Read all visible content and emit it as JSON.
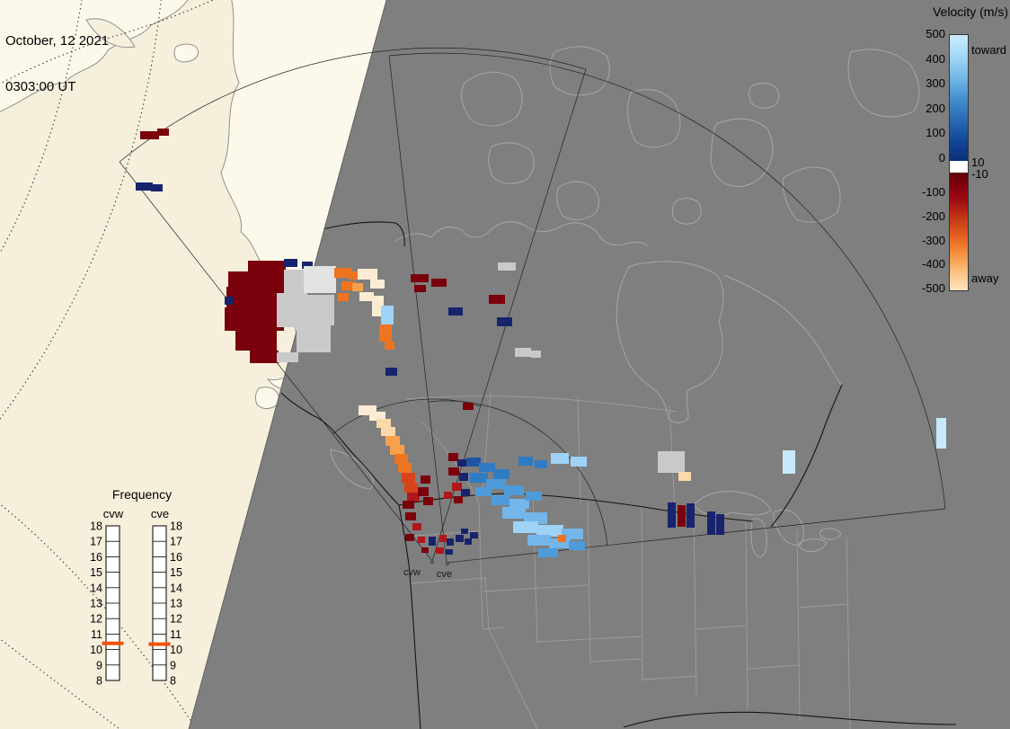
{
  "timestamp": {
    "date": "October, 12 2021",
    "time": "0303:00 UT"
  },
  "velocity_legend": {
    "title": "Velocity (m/s)",
    "toward_label": "toward",
    "away_label": "away",
    "pos_ticks": [
      "500",
      "400",
      "300",
      "200",
      "100",
      "0"
    ],
    "neg_ticks": [
      "-100",
      "-200",
      "-300",
      "-400",
      "-500"
    ],
    "inner_pos_tick": "10",
    "inner_neg_tick": "-10",
    "blue_stops": [
      "#c9ecfc",
      "#a3d8f5",
      "#74b9e8",
      "#4690cf",
      "#2a6cb5",
      "#12489a",
      "#0b2f78"
    ],
    "red_stops": [
      "#610008",
      "#84000e",
      "#a30f14",
      "#c23317",
      "#dd551e",
      "#ef7c2c",
      "#f9a455",
      "#fcc98d",
      "#fde3bd"
    ],
    "zero_gap_color": "#ffffff"
  },
  "frequency_legend": {
    "title": "Frequency",
    "ticks": [
      "18",
      "17",
      "16",
      "15",
      "14",
      "13",
      "12",
      "11",
      "10",
      "9",
      "8"
    ],
    "columns": [
      {
        "id": "cvw",
        "label": "cvw",
        "tick_side": "left",
        "marker_freq": 10.4
      },
      {
        "id": "cve",
        "label": "cve",
        "tick_side": "right",
        "marker_freq": 10.35
      }
    ],
    "marker_color": "#f25009"
  },
  "map": {
    "radar_sites": [
      {
        "id": "cvw",
        "label": "cvw"
      },
      {
        "id": "cve",
        "label": "cve"
      }
    ],
    "colors": {
      "night_bg": "#7f7f7f",
      "day_ocean": "#f5efdc",
      "day_land": "#fdf9ea",
      "coast_day": "#8f8f8f",
      "coast_night": "#a6a6a6",
      "state_line": "#9d9d9d",
      "border_dark": "#141414",
      "fov_line": "#222222",
      "terminator": "#555555"
    },
    "palette": {
      "dr": "#7a000b",
      "r": "#b0161a",
      "or": "#d8431c",
      "o": "#ee7420",
      "lo": "#f9a04d",
      "pe": "#fbd9a9",
      "pp": "#fcecd4",
      "gy": "#c9c9c9",
      "wg": "#e3e3e3",
      "nv": "#17246d",
      "b1": "#1c56a4",
      "b2": "#2f7bc3",
      "b3": "#4f9bd9",
      "b4": "#74b5ea",
      "b5": "#9ed2f6",
      "b6": "#c6e9fc"
    },
    "pixels": [
      [
        156,
        146,
        21,
        9,
        "dr"
      ],
      [
        175,
        143,
        13,
        8,
        "dr"
      ],
      [
        151,
        203,
        19,
        9,
        "nv"
      ],
      [
        168,
        205,
        13,
        8,
        "nv"
      ],
      [
        276,
        290,
        42,
        12,
        "dr"
      ],
      [
        316,
        288,
        15,
        9,
        "nv"
      ],
      [
        336,
        291,
        12,
        8,
        "nv"
      ],
      [
        254,
        302,
        62,
        17,
        "dr"
      ],
      [
        252,
        319,
        64,
        23,
        "dr"
      ],
      [
        250,
        342,
        66,
        26,
        "dr"
      ],
      [
        262,
        368,
        46,
        22,
        "dr"
      ],
      [
        278,
        390,
        32,
        14,
        "dr"
      ],
      [
        250,
        330,
        10,
        9,
        "nv"
      ],
      [
        316,
        300,
        22,
        26,
        "gy"
      ],
      [
        338,
        296,
        36,
        30,
        "wg"
      ],
      [
        308,
        326,
        34,
        38,
        "gy"
      ],
      [
        342,
        328,
        30,
        34,
        "gy"
      ],
      [
        330,
        362,
        38,
        30,
        "gy"
      ],
      [
        308,
        392,
        24,
        11,
        "gy"
      ],
      [
        372,
        298,
        20,
        11,
        "o"
      ],
      [
        388,
        302,
        13,
        9,
        "o"
      ],
      [
        380,
        313,
        16,
        10,
        "o"
      ],
      [
        392,
        315,
        12,
        9,
        "lo"
      ],
      [
        376,
        326,
        12,
        9,
        "o"
      ],
      [
        398,
        299,
        22,
        12,
        "pp"
      ],
      [
        412,
        311,
        16,
        10,
        "pp"
      ],
      [
        400,
        325,
        16,
        10,
        "pp"
      ],
      [
        414,
        329,
        13,
        23,
        "pp"
      ],
      [
        424,
        340,
        14,
        21,
        "b5"
      ],
      [
        422,
        361,
        14,
        19,
        "o"
      ],
      [
        428,
        380,
        11,
        9,
        "o"
      ],
      [
        457,
        305,
        20,
        9,
        "dr"
      ],
      [
        480,
        310,
        17,
        9,
        "dr"
      ],
      [
        461,
        317,
        13,
        8,
        "dr"
      ],
      [
        544,
        328,
        18,
        10,
        "dr"
      ],
      [
        554,
        292,
        20,
        9,
        "gy"
      ],
      [
        499,
        342,
        16,
        9,
        "nv"
      ],
      [
        553,
        353,
        17,
        10,
        "nv"
      ],
      [
        573,
        387,
        18,
        10,
        "gy"
      ],
      [
        591,
        390,
        11,
        8,
        "gy"
      ],
      [
        429,
        409,
        13,
        9,
        "nv"
      ],
      [
        399,
        451,
        20,
        11,
        "pp"
      ],
      [
        411,
        458,
        18,
        10,
        "pp"
      ],
      [
        419,
        466,
        16,
        10,
        "pe"
      ],
      [
        424,
        475,
        16,
        10,
        "pe"
      ],
      [
        429,
        485,
        16,
        11,
        "lo"
      ],
      [
        434,
        495,
        16,
        11,
        "lo"
      ],
      [
        439,
        505,
        15,
        11,
        "o"
      ],
      [
        443,
        515,
        15,
        11,
        "o"
      ],
      [
        447,
        526,
        15,
        11,
        "or"
      ],
      [
        450,
        537,
        15,
        11,
        "or"
      ],
      [
        453,
        548,
        14,
        10,
        "r"
      ],
      [
        448,
        557,
        13,
        9,
        "dr"
      ],
      [
        465,
        542,
        12,
        10,
        "dr"
      ],
      [
        468,
        529,
        11,
        9,
        "dr"
      ],
      [
        471,
        553,
        11,
        9,
        "dr"
      ],
      [
        515,
        448,
        12,
        8,
        "dr"
      ],
      [
        499,
        504,
        11,
        9,
        "dr"
      ],
      [
        509,
        511,
        10,
        8,
        "nv"
      ],
      [
        499,
        520,
        12,
        9,
        "dr"
      ],
      [
        511,
        526,
        10,
        9,
        "nv"
      ],
      [
        503,
        537,
        11,
        9,
        "r"
      ],
      [
        513,
        544,
        10,
        8,
        "nv"
      ],
      [
        505,
        552,
        10,
        8,
        "dr"
      ],
      [
        494,
        547,
        9,
        8,
        "r"
      ],
      [
        519,
        509,
        16,
        10,
        "b1"
      ],
      [
        533,
        515,
        18,
        10,
        "b2"
      ],
      [
        549,
        522,
        18,
        11,
        "b2"
      ],
      [
        523,
        526,
        20,
        11,
        "b2"
      ],
      [
        541,
        533,
        22,
        11,
        "b3"
      ],
      [
        561,
        540,
        22,
        11,
        "b3"
      ],
      [
        529,
        542,
        18,
        10,
        "b3"
      ],
      [
        547,
        551,
        20,
        11,
        "b3"
      ],
      [
        567,
        555,
        22,
        11,
        "b4"
      ],
      [
        585,
        547,
        18,
        10,
        "b3"
      ],
      [
        559,
        564,
        26,
        13,
        "b4"
      ],
      [
        583,
        570,
        26,
        13,
        "b4"
      ],
      [
        571,
        580,
        28,
        13,
        "b5"
      ],
      [
        597,
        584,
        30,
        13,
        "b5"
      ],
      [
        625,
        588,
        24,
        12,
        "b4"
      ],
      [
        587,
        595,
        26,
        12,
        "b4"
      ],
      [
        611,
        599,
        24,
        11,
        "b4"
      ],
      [
        633,
        602,
        18,
        10,
        "b3"
      ],
      [
        599,
        610,
        22,
        10,
        "b3"
      ],
      [
        577,
        508,
        16,
        10,
        "b2"
      ],
      [
        595,
        512,
        14,
        9,
        "b2"
      ],
      [
        613,
        504,
        20,
        12,
        "b5"
      ],
      [
        635,
        508,
        18,
        11,
        "b5"
      ],
      [
        621,
        595,
        9,
        8,
        "o"
      ],
      [
        451,
        570,
        12,
        9,
        "dr"
      ],
      [
        459,
        582,
        10,
        8,
        "r"
      ],
      [
        451,
        594,
        10,
        8,
        "dr"
      ],
      [
        465,
        597,
        8,
        7,
        "r"
      ],
      [
        477,
        597,
        8,
        10,
        "nv"
      ],
      [
        489,
        595,
        8,
        8,
        "r"
      ],
      [
        497,
        599,
        8,
        8,
        "nv"
      ],
      [
        507,
        595,
        9,
        8,
        "nv"
      ],
      [
        517,
        599,
        8,
        7,
        "nv"
      ],
      [
        485,
        609,
        9,
        7,
        "r"
      ],
      [
        496,
        611,
        8,
        6,
        "nv"
      ],
      [
        513,
        588,
        8,
        6,
        "nv"
      ],
      [
        523,
        592,
        9,
        7,
        "nv"
      ],
      [
        469,
        609,
        8,
        6,
        "dr"
      ],
      [
        732,
        502,
        30,
        24,
        "gy"
      ],
      [
        755,
        525,
        14,
        10,
        "pe"
      ],
      [
        743,
        559,
        9,
        28,
        "nv"
      ],
      [
        754,
        562,
        9,
        24,
        "dr"
      ],
      [
        764,
        560,
        9,
        27,
        "nv"
      ],
      [
        787,
        569,
        9,
        26,
        "nv"
      ],
      [
        797,
        572,
        9,
        23,
        "nv"
      ],
      [
        871,
        501,
        14,
        26,
        "b6"
      ],
      [
        1042,
        465,
        11,
        34,
        "b6"
      ]
    ]
  }
}
